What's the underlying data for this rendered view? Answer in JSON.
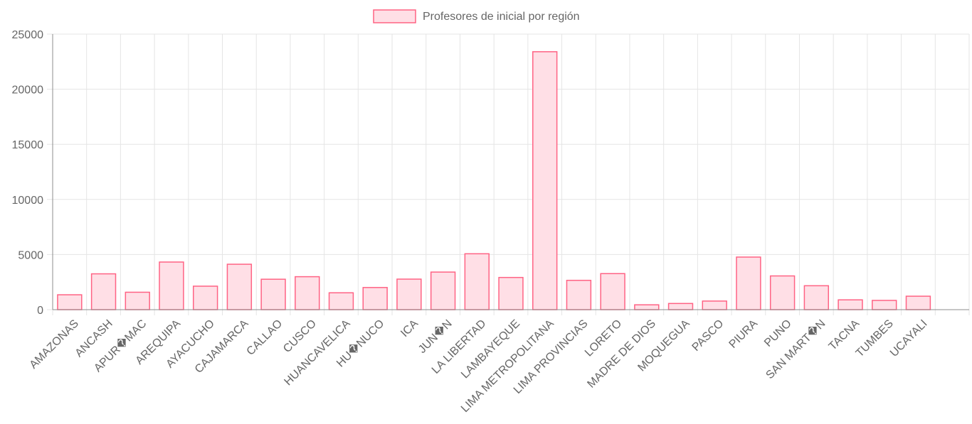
{
  "chart_data": {
    "type": "bar",
    "categories": [
      "AMAZONAS",
      "ANCASH",
      "APUR�MAC",
      "AREQUIPA",
      "AYACUCHO",
      "CAJAMARCA",
      "CALLAO",
      "CUSCO",
      "HUANCAVELICA",
      "HU�NUCO",
      "ICA",
      "JUN�N",
      "LA LIBERTAD",
      "LAMBAYEQUE",
      "LIMA METROPOLITANA",
      "LIMA PROVINCIAS",
      "LORETO",
      "MADRE DE DIOS",
      "MOQUEGUA",
      "PASCO",
      "PIURA",
      "PUNO",
      "SAN MART�N",
      "TACNA",
      "TUMBES",
      "UCAYALI"
    ],
    "series": [
      {
        "name": "Profesores de inicial por región",
        "values": [
          1350,
          3250,
          1580,
          4320,
          2130,
          4120,
          2760,
          2990,
          1530,
          2010,
          2770,
          3410,
          5070,
          2920,
          23400,
          2660,
          3270,
          440,
          560,
          780,
          4770,
          3060,
          2170,
          890,
          840,
          1220
        ]
      }
    ],
    "ylim": [
      0,
      25000
    ],
    "yticks": [
      "0",
      "5000",
      "10000",
      "15000",
      "20000",
      "25000"
    ],
    "grid": true,
    "legend_position": "top-center",
    "colors": {
      "bar_fill": "#ffdfe6",
      "bar_border": "#ff6384",
      "grid": "#e5e5e5",
      "axis": "#8c8c8c",
      "text": "#666666"
    }
  }
}
